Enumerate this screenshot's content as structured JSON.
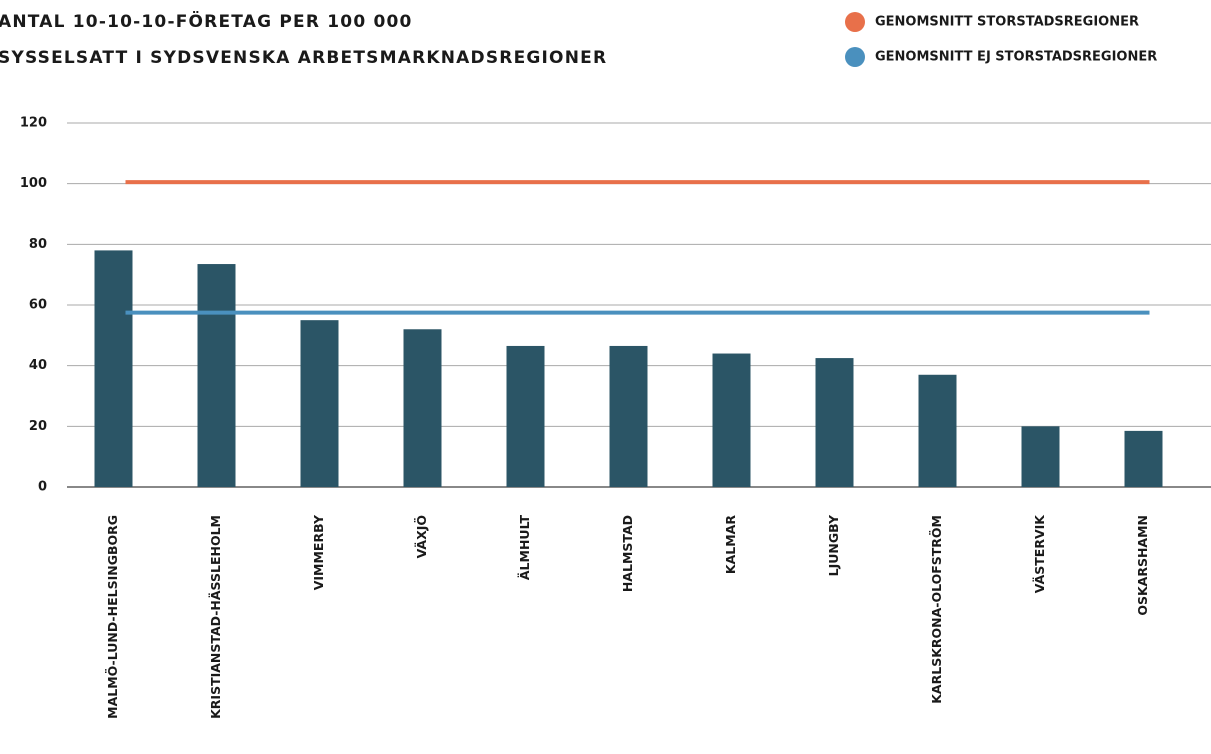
{
  "chart_data": {
    "type": "bar",
    "title": [
      "ANTAL 10-10-10-FÖRETAG PER 100 000",
      "SYSSELSATT I SYDSVENSKA ARBETSMARKNADSREGIONER"
    ],
    "categories": [
      "MALMÖ-LUND-HELSINGBORG",
      "KRISTIANSTAD-HÄSSLEHOLM",
      "VIMMERBY",
      "VÄXJÖ",
      "ÄLMHULT",
      "HALMSTAD",
      "KALMAR",
      "LJUNGBY",
      "KARLSKRONA-OLOFSTRÖM",
      "VÄSTERVIK",
      "OSKARSHAMN"
    ],
    "values": [
      78,
      73.5,
      55,
      52,
      46.5,
      46.5,
      44,
      42.5,
      37,
      20,
      18.5
    ],
    "color": "#2b5566",
    "reference_lines": [
      {
        "name": "GENOMSNITT STORSTADSREGIONER",
        "color": "#e8704a",
        "value": 100.5
      },
      {
        "name": "GENOMSNITT EJ STORSTADSREGIONER",
        "color": "#4a90be",
        "value": 57.5
      }
    ],
    "ylim": [
      0,
      120
    ],
    "yticks": [
      0,
      20,
      40,
      60,
      80,
      100,
      120
    ],
    "grid": true
  }
}
